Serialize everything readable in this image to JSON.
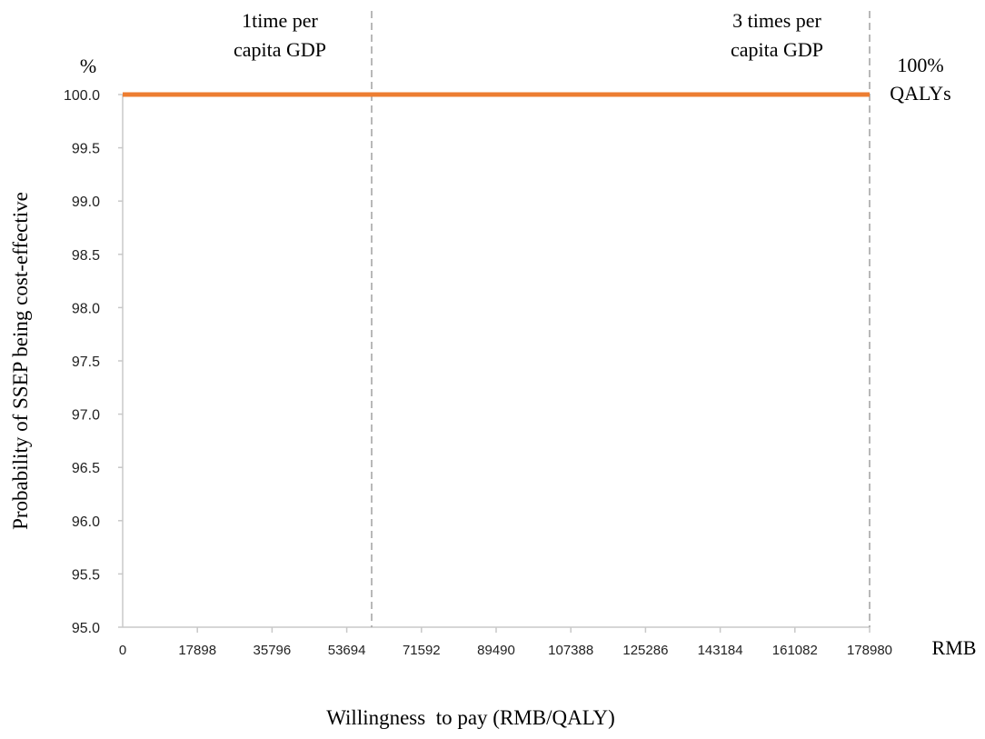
{
  "chart_data": {
    "type": "line",
    "title": "",
    "xlabel": "Willingness  to pay (RMB/QALY)",
    "ylabel": "Probability of SSEP being cost-effective",
    "y_unit": "%",
    "x_unit": "RMB",
    "xlim": [
      0,
      178980
    ],
    "ylim": [
      95.0,
      100.0
    ],
    "x_ticks": [
      0,
      17898,
      35796,
      53694,
      71592,
      89490,
      107388,
      125286,
      143184,
      161082,
      178980
    ],
    "y_ticks": [
      "95.0",
      "95.5",
      "96.0",
      "96.5",
      "97.0",
      "97.5",
      "98.0",
      "98.5",
      "99.0",
      "99.5",
      "100.0"
    ],
    "grid": false,
    "series": [
      {
        "name": "",
        "color": "#ED7D31",
        "x": [
          0,
          178980
        ],
        "y": [
          100.0,
          100.0
        ]
      }
    ],
    "reference_lines": [
      {
        "x": 59660,
        "label_lines": [
          "1time per",
          "capita GDP"
        ]
      },
      {
        "x": 178980,
        "label_lines": [
          "3 times per",
          "capita GDP"
        ]
      }
    ],
    "annotations": [
      {
        "lines": [
          "100%",
          "QALYs"
        ]
      }
    ]
  }
}
